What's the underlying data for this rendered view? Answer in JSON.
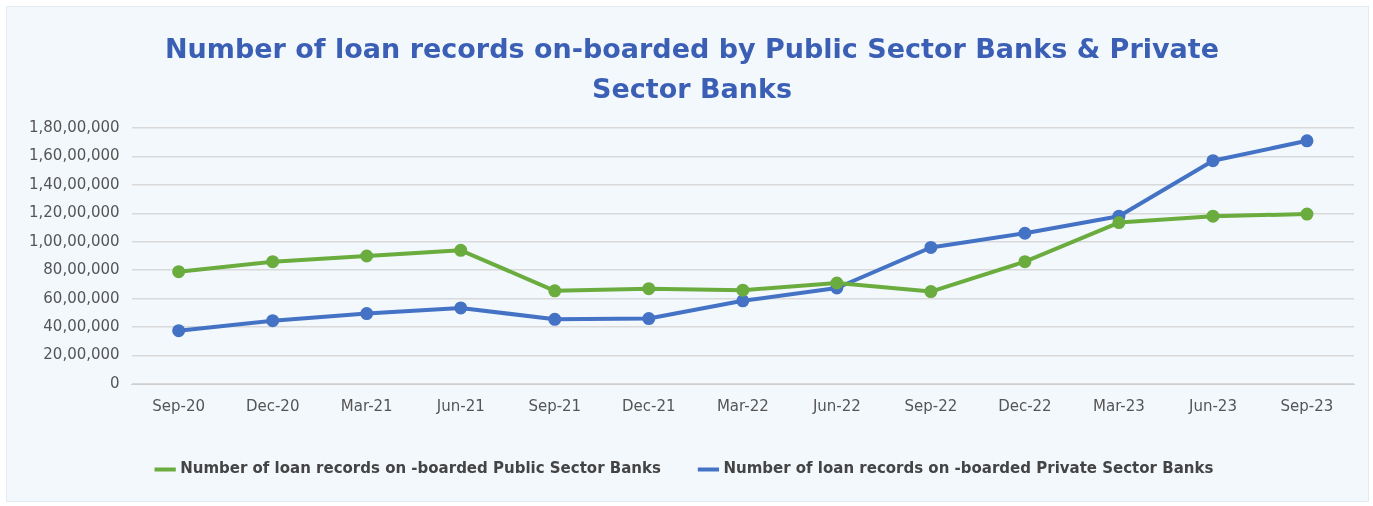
{
  "chart_data": {
    "type": "line",
    "title": "Number of loan records on-boarded by Public Sector Banks & Private Sector Banks",
    "categories": [
      "Sep-20",
      "Dec-20",
      "Mar-21",
      "Jun-21",
      "Sep-21",
      "Dec-21",
      "Mar-22",
      "Jun-22",
      "Sep-22",
      "Dec-22",
      "Mar-23",
      "Jun-23",
      "Sep-23"
    ],
    "series": [
      {
        "name": "Number of loan records on -boarded Public Sector Banks",
        "color": "#6aac3e",
        "values": [
          7900000,
          8600000,
          9000000,
          9400000,
          6550000,
          6700000,
          6600000,
          7100000,
          6500000,
          8600000,
          11350000,
          11800000,
          11950000
        ]
      },
      {
        "name": "Number of loan records on -boarded Private Sector Banks",
        "color": "#4472c4",
        "values": [
          3750000,
          4450000,
          4950000,
          5350000,
          4550000,
          4600000,
          5850000,
          6750000,
          9600000,
          10600000,
          11800000,
          15700000,
          17100000
        ]
      }
    ],
    "ylim": [
      0,
      18000000
    ],
    "yticks": [
      0,
      {
        "value": 2000000,
        "label": "20,00,000"
      },
      {
        "value": 4000000,
        "label": "40,00,000"
      },
      {
        "value": 6000000,
        "label": "60,00,000"
      },
      {
        "value": 8000000,
        "label": "80,00,000"
      },
      {
        "value": 10000000,
        "label": "1,00,00,000"
      },
      {
        "value": 12000000,
        "label": "1,20,00,000"
      },
      {
        "value": 14000000,
        "label": "1,40,00,000"
      },
      {
        "value": 16000000,
        "label": "1,60,00,000"
      },
      {
        "value": 18000000,
        "label": "1,80,00,000"
      }
    ],
    "grid": "y",
    "legend": "bottom",
    "marker": "circle",
    "line_style": "solid"
  }
}
